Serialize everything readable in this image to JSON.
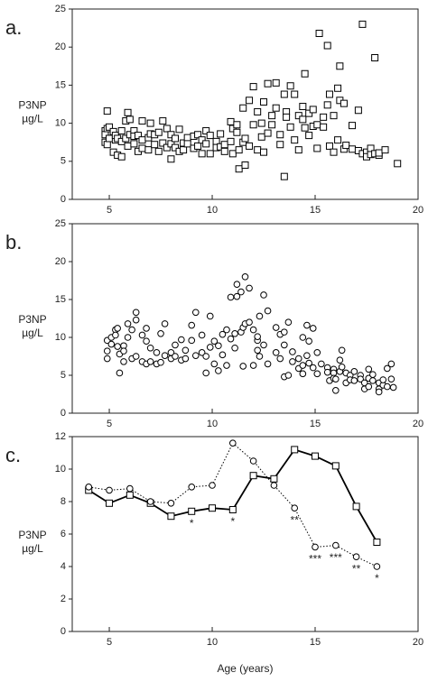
{
  "chart_data": [
    {
      "type": "scatter",
      "panel_label": "a.",
      "ylabel": [
        "P3NP",
        "µg/L"
      ],
      "marker": "square",
      "color": "#000000",
      "xlim": [
        3.2,
        20
      ],
      "xticks": [
        5,
        10,
        15,
        20
      ],
      "ylim": [
        0,
        25
      ],
      "yticks": [
        0,
        5,
        10,
        15,
        20,
        25
      ],
      "x": [
        4.8,
        4.8,
        4.8,
        4.9,
        4.9,
        4.9,
        5.0,
        5.0,
        5.2,
        5.2,
        5.3,
        5.3,
        5.4,
        5.4,
        5.6,
        5.6,
        5.6,
        5.8,
        5.8,
        5.9,
        5.9,
        6.0,
        6.0,
        6.2,
        6.2,
        6.2,
        6.4,
        6.4,
        6.6,
        6.6,
        6.6,
        6.9,
        6.9,
        7.0,
        7.0,
        7.2,
        7.2,
        7.4,
        7.4,
        7.6,
        7.6,
        7.8,
        7.8,
        8.0,
        8.0,
        8.0,
        8.2,
        8.2,
        8.4,
        8.4,
        8.6,
        8.6,
        8.8,
        8.8,
        9.1,
        9.1,
        9.3,
        9.3,
        9.5,
        9.5,
        9.7,
        9.7,
        9.9,
        9.9,
        10.2,
        10.2,
        10.4,
        10.4,
        10.6,
        10.6,
        10.9,
        10.9,
        11.0,
        11.0,
        11.2,
        11.2,
        11.3,
        11.3,
        11.5,
        11.5,
        11.6,
        11.6,
        11.8,
        11.8,
        12.0,
        12.0,
        12.2,
        12.2,
        12.4,
        12.4,
        12.5,
        12.5,
        12.7,
        12.7,
        12.9,
        12.9,
        13.1,
        13.1,
        13.3,
        13.3,
        13.5,
        13.5,
        13.6,
        13.6,
        13.8,
        13.8,
        14.0,
        14.0,
        14.2,
        14.2,
        14.4,
        14.4,
        14.5,
        14.5,
        14.7,
        14.7,
        14.9,
        14.9,
        15.1,
        15.1,
        15.2,
        15.4,
        15.4,
        15.6,
        15.6,
        15.7,
        15.7,
        15.9,
        15.9,
        16.1,
        16.1,
        16.2,
        16.2,
        16.4,
        16.4,
        16.5,
        16.8,
        16.8,
        17.1,
        17.1,
        17.3,
        17.3,
        17.5,
        17.5,
        17.7,
        17.7,
        17.9,
        17.9,
        18.1,
        18.1,
        18.4,
        19.0
      ],
      "values": [
        9.0,
        8.5,
        7.5,
        9.3,
        11.6,
        7.2,
        8.0,
        9.5,
        8.9,
        6.2,
        7.8,
        8.4,
        5.8,
        8.0,
        5.6,
        9.0,
        7.6,
        10.3,
        8.0,
        11.4,
        7.0,
        10.5,
        8.5,
        7.3,
        9.0,
        8.3,
        6.3,
        8.4,
        10.3,
        7.8,
        6.7,
        8.1,
        6.5,
        8.6,
        10.0,
        7.2,
        8.5,
        8.8,
        6.3,
        10.3,
        7.4,
        9.3,
        6.8,
        7.3,
        8.5,
        5.3,
        6.8,
        8.0,
        6.3,
        9.2,
        7.4,
        6.5,
        8.1,
        7.3,
        8.3,
        6.7,
        8.5,
        7.0,
        6.0,
        7.8,
        9.0,
        7.3,
        8.4,
        6.0,
        7.6,
        6.8,
        8.6,
        6.9,
        6.3,
        7.2,
        10.2,
        7.6,
        9.3,
        6.0,
        8.8,
        9.8,
        6.5,
        4.0,
        7.5,
        12.0,
        4.5,
        8.0,
        13.0,
        7.0,
        14.8,
        9.8,
        11.5,
        6.5,
        8.2,
        10.0,
        12.8,
        6.2,
        8.7,
        15.2,
        11.0,
        9.8,
        12.0,
        15.3,
        8.5,
        7.2,
        13.8,
        3.0,
        11.5,
        10.8,
        14.9,
        9.5,
        7.8,
        13.8,
        11.0,
        6.5,
        12.2,
        10.5,
        16.5,
        9.4,
        8.4,
        11.3,
        11.8,
        9.6,
        6.7,
        9.8,
        21.8,
        10.8,
        9.5,
        20.2,
        12.4,
        13.8,
        7.0,
        11.0,
        6.2,
        14.6,
        7.8,
        17.5,
        13.0,
        12.6,
        6.6,
        7.1,
        6.6,
        9.7,
        11.7,
        6.4,
        6.0,
        23.0,
        6.2,
        5.6,
        5.9,
        6.7,
        18.6,
        6.0,
        5.8,
        6.1,
        6.5,
        4.7
      ]
    },
    {
      "type": "scatter",
      "panel_label": "b.",
      "ylabel": [
        "P3NP",
        "µg/L"
      ],
      "marker": "circle",
      "color": "#000000",
      "xlim": [
        3.2,
        20
      ],
      "xticks": [
        5,
        10,
        15,
        20
      ],
      "ylim": [
        0,
        25
      ],
      "yticks": [
        0,
        5,
        10,
        15,
        20,
        25
      ],
      "x": [
        4.9,
        4.9,
        4.9,
        5.1,
        5.1,
        5.3,
        5.3,
        5.4,
        5.4,
        5.5,
        5.5,
        5.7,
        5.7,
        5.7,
        5.9,
        5.9,
        6.1,
        6.1,
        6.3,
        6.3,
        6.3,
        6.6,
        6.6,
        6.8,
        6.8,
        6.8,
        7.0,
        7.0,
        7.3,
        7.3,
        7.5,
        7.5,
        7.7,
        7.7,
        8.0,
        8.0,
        8.2,
        8.2,
        8.5,
        8.5,
        8.7,
        8.7,
        9.0,
        9.0,
        9.2,
        9.2,
        9.5,
        9.5,
        9.7,
        9.7,
        9.9,
        9.9,
        10.1,
        10.1,
        10.3,
        10.3,
        10.5,
        10.5,
        10.7,
        10.7,
        10.9,
        10.9,
        11.1,
        11.1,
        11.2,
        11.2,
        11.4,
        11.4,
        11.5,
        11.5,
        11.6,
        11.6,
        11.8,
        11.8,
        12.0,
        12.0,
        12.2,
        12.2,
        12.2,
        12.3,
        12.3,
        12.5,
        12.5,
        12.7,
        12.7,
        13.1,
        13.1,
        13.3,
        13.3,
        13.5,
        13.5,
        13.5,
        13.7,
        13.7,
        13.9,
        13.9,
        14.2,
        14.2,
        14.4,
        14.4,
        14.4,
        14.6,
        14.6,
        14.7,
        14.7,
        14.9,
        14.9,
        15.1,
        15.1,
        15.3,
        15.6,
        15.6,
        15.7,
        15.9,
        15.9,
        15.9,
        16.0,
        16.0,
        16.2,
        16.2,
        16.3,
        16.3,
        16.5,
        16.5,
        16.7,
        16.7,
        16.9,
        16.9,
        17.2,
        17.2,
        17.4,
        17.4,
        17.6,
        17.6,
        17.6,
        17.8,
        17.8,
        18.1,
        18.1,
        18.1,
        18.3,
        18.3,
        18.5,
        18.5,
        18.7,
        18.7,
        18.8
      ],
      "values": [
        9.6,
        8.2,
        7.2,
        9.1,
        10.0,
        11.0,
        10.3,
        11.2,
        8.8,
        5.3,
        7.8,
        8.9,
        8.2,
        6.8,
        10.0,
        11.8,
        7.2,
        11.0,
        13.3,
        12.3,
        7.5,
        10.3,
        6.8,
        9.5,
        11.2,
        6.5,
        8.6,
        6.8,
        8.0,
        6.5,
        10.5,
        6.7,
        7.6,
        11.8,
        8.0,
        7.2,
        9.0,
        7.5,
        9.7,
        7.0,
        7.2,
        8.3,
        9.6,
        11.6,
        13.3,
        7.6,
        10.3,
        8.0,
        5.3,
        7.5,
        12.8,
        8.7,
        6.5,
        9.5,
        5.6,
        8.9,
        7.7,
        10.4,
        6.3,
        11.0,
        15.3,
        9.8,
        10.5,
        8.6,
        15.4,
        17.0,
        16.0,
        10.7,
        11.3,
        6.2,
        18.0,
        11.8,
        12.0,
        16.5,
        6.3,
        11.0,
        9.6,
        10.1,
        8.3,
        12.8,
        7.5,
        15.6,
        9.0,
        13.5,
        6.5,
        8.0,
        11.3,
        10.4,
        7.2,
        10.7,
        9.0,
        4.8,
        12.0,
        5.0,
        8.1,
        6.8,
        7.2,
        5.9,
        10.0,
        6.3,
        5.2,
        11.6,
        7.6,
        9.5,
        6.6,
        6.0,
        11.2,
        8.0,
        5.2,
        6.5,
        6.0,
        5.4,
        4.3,
        5.8,
        5.3,
        4.6,
        3.0,
        4.5,
        7.0,
        5.5,
        8.3,
        6.1,
        4.0,
        5.3,
        5.0,
        4.4,
        4.3,
        5.5,
        5.0,
        4.5,
        3.2,
        4.0,
        5.8,
        4.6,
        3.5,
        5.1,
        4.3,
        4.0,
        3.2,
        2.8,
        3.7,
        4.4,
        5.9,
        3.5,
        6.5,
        4.5,
        3.4
      ]
    },
    {
      "type": "line",
      "panel_label": "c.",
      "ylabel": [
        "P3NP",
        "µg/L"
      ],
      "xlabel": "Age (years)",
      "xlim": [
        3.2,
        20
      ],
      "xticks": [
        5,
        10,
        15,
        20
      ],
      "ylim": [
        0,
        12
      ],
      "yticks": [
        0,
        2,
        4,
        6,
        8,
        10,
        12
      ],
      "x": [
        4,
        5,
        6,
        7,
        8,
        9,
        10,
        11,
        12,
        13,
        14,
        15,
        16,
        17,
        18
      ],
      "series": [
        {
          "marker": "square",
          "linestyle": "solid",
          "color": "#000000",
          "values": [
            8.7,
            7.9,
            8.4,
            7.9,
            7.1,
            7.4,
            7.6,
            7.5,
            9.6,
            9.4,
            11.2,
            10.8,
            10.2,
            7.7,
            5.5
          ]
        },
        {
          "marker": "circle",
          "linestyle": "dotted",
          "color": "#000000",
          "values": [
            8.9,
            8.7,
            8.8,
            8.0,
            7.9,
            8.9,
            9.0,
            11.6,
            10.5,
            9.0,
            7.6,
            5.2,
            5.3,
            4.6,
            4.0
          ]
        }
      ],
      "annotations": [
        {
          "x": 9,
          "text": "*"
        },
        {
          "x": 11,
          "text": "*"
        },
        {
          "x": 14,
          "text": "**"
        },
        {
          "x": 15,
          "text": "***"
        },
        {
          "x": 16,
          "text": "***"
        },
        {
          "x": 17,
          "text": "**"
        },
        {
          "x": 18,
          "text": "*"
        }
      ]
    }
  ]
}
